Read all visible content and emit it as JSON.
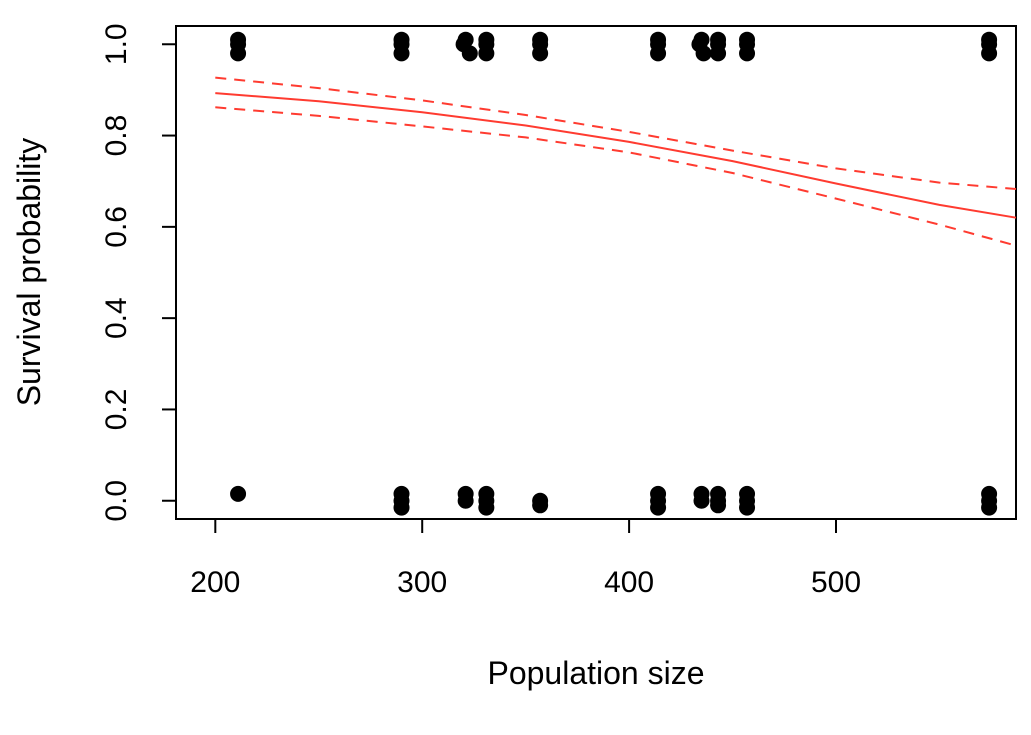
{
  "chart_data": {
    "type": "scatter",
    "title": "",
    "xlabel": "Population size",
    "ylabel": "Survival probability",
    "xlim": [
      181,
      587
    ],
    "ylim": [
      -0.04,
      1.04
    ],
    "x_ticks": [
      "200",
      "300",
      "400",
      "500"
    ],
    "y_ticks": [
      "0.0",
      "0.2",
      "0.4",
      "0.6",
      "0.8",
      "1.0"
    ],
    "grid": false,
    "legend": "none",
    "colors": {
      "points": "#000000",
      "fit": "#ff3b30",
      "axis": "#000000"
    },
    "series": [
      {
        "role": "observations",
        "points": [
          {
            "x": 211,
            "y": 1.0
          },
          {
            "x": 211,
            "y": 0.98
          },
          {
            "x": 211,
            "y": 1.01
          },
          {
            "x": 211,
            "y": 0.015
          },
          {
            "x": 290,
            "y": 1.0
          },
          {
            "x": 290,
            "y": 0.98
          },
          {
            "x": 290,
            "y": 1.01
          },
          {
            "x": 290,
            "y": 0.0
          },
          {
            "x": 290,
            "y": -0.015
          },
          {
            "x": 290,
            "y": 0.015
          },
          {
            "x": 320,
            "y": 1.0
          },
          {
            "x": 323,
            "y": 0.98
          },
          {
            "x": 321,
            "y": 1.01
          },
          {
            "x": 321,
            "y": 0.0
          },
          {
            "x": 321,
            "y": 0.015
          },
          {
            "x": 331,
            "y": 1.0
          },
          {
            "x": 331,
            "y": 0.98
          },
          {
            "x": 331,
            "y": 1.01
          },
          {
            "x": 331,
            "y": 0.0
          },
          {
            "x": 331,
            "y": -0.015
          },
          {
            "x": 331,
            "y": 0.015
          },
          {
            "x": 357,
            "y": 1.0
          },
          {
            "x": 357,
            "y": 0.98
          },
          {
            "x": 357,
            "y": 1.01
          },
          {
            "x": 357,
            "y": 0.0
          },
          {
            "x": 357,
            "y": -0.01
          },
          {
            "x": 414,
            "y": 1.0
          },
          {
            "x": 414,
            "y": 0.98
          },
          {
            "x": 414,
            "y": 1.01
          },
          {
            "x": 414,
            "y": 0.0
          },
          {
            "x": 414,
            "y": -0.015
          },
          {
            "x": 414,
            "y": 0.015
          },
          {
            "x": 434,
            "y": 1.0
          },
          {
            "x": 436,
            "y": 0.98
          },
          {
            "x": 435,
            "y": 1.01
          },
          {
            "x": 435,
            "y": 0.0
          },
          {
            "x": 435,
            "y": 0.015
          },
          {
            "x": 443,
            "y": 1.0
          },
          {
            "x": 443,
            "y": 0.98
          },
          {
            "x": 443,
            "y": 1.01
          },
          {
            "x": 443,
            "y": 0.0
          },
          {
            "x": 443,
            "y": -0.01
          },
          {
            "x": 443,
            "y": 0.015
          },
          {
            "x": 457,
            "y": 1.0
          },
          {
            "x": 457,
            "y": 0.98
          },
          {
            "x": 457,
            "y": 1.01
          },
          {
            "x": 457,
            "y": 0.0
          },
          {
            "x": 457,
            "y": -0.015
          },
          {
            "x": 457,
            "y": 0.015
          },
          {
            "x": 574,
            "y": 1.0
          },
          {
            "x": 574,
            "y": 0.98
          },
          {
            "x": 574,
            "y": 1.01
          },
          {
            "x": 574,
            "y": 0.0
          },
          {
            "x": 574,
            "y": -0.015
          },
          {
            "x": 574,
            "y": 0.015
          }
        ]
      },
      {
        "role": "fit",
        "style": "solid",
        "points": [
          {
            "x": 200,
            "y": 0.893
          },
          {
            "x": 250,
            "y": 0.875
          },
          {
            "x": 300,
            "y": 0.851
          },
          {
            "x": 350,
            "y": 0.822
          },
          {
            "x": 400,
            "y": 0.786
          },
          {
            "x": 450,
            "y": 0.744
          },
          {
            "x": 500,
            "y": 0.695
          },
          {
            "x": 550,
            "y": 0.648
          },
          {
            "x": 587,
            "y": 0.62
          }
        ]
      },
      {
        "role": "upper-ci",
        "style": "dashed",
        "points": [
          {
            "x": 200,
            "y": 0.927
          },
          {
            "x": 250,
            "y": 0.904
          },
          {
            "x": 300,
            "y": 0.877
          },
          {
            "x": 350,
            "y": 0.845
          },
          {
            "x": 400,
            "y": 0.808
          },
          {
            "x": 450,
            "y": 0.767
          },
          {
            "x": 500,
            "y": 0.728
          },
          {
            "x": 550,
            "y": 0.697
          },
          {
            "x": 587,
            "y": 0.683
          }
        ]
      },
      {
        "role": "lower-ci",
        "style": "dashed",
        "points": [
          {
            "x": 200,
            "y": 0.862
          },
          {
            "x": 250,
            "y": 0.843
          },
          {
            "x": 300,
            "y": 0.82
          },
          {
            "x": 350,
            "y": 0.796
          },
          {
            "x": 400,
            "y": 0.763
          },
          {
            "x": 450,
            "y": 0.718
          },
          {
            "x": 500,
            "y": 0.662
          },
          {
            "x": 550,
            "y": 0.605
          },
          {
            "x": 587,
            "y": 0.559
          }
        ]
      }
    ]
  }
}
